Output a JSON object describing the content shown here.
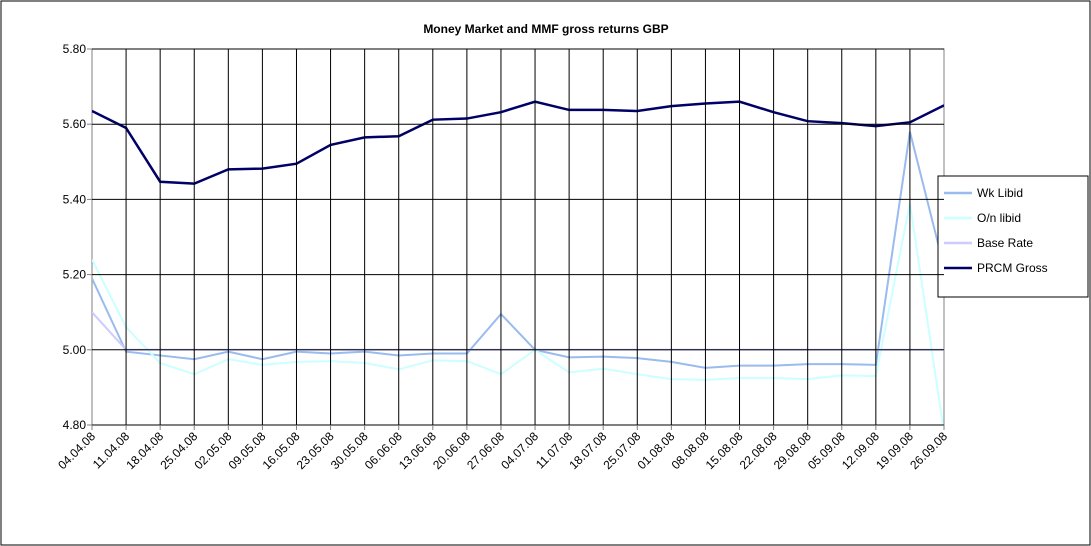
{
  "chart_data": {
    "type": "line",
    "title": "Money Market and MMF gross returns GBP",
    "categories": [
      "04.04.08",
      "11.04.08",
      "18.04.08",
      "25.04.08",
      "02.05.08",
      "09.05.08",
      "16.05.08",
      "23.05.08",
      "30.05.08",
      "06.06.08",
      "13.06.08",
      "20.06.08",
      "27.06.08",
      "04.07.08",
      "11.07.08",
      "18.07.08",
      "25.07.08",
      "01.08.08",
      "08.08.08",
      "15.08.08",
      "22.08.08",
      "29.08.08",
      "05.09.08",
      "12.09.08",
      "19.09.08",
      "26.09.08"
    ],
    "series": [
      {
        "name": "Wk Libid",
        "color": "#99bbee",
        "values": [
          5.19,
          4.995,
          4.985,
          4.975,
          4.995,
          4.975,
          4.995,
          4.99,
          4.995,
          4.985,
          4.99,
          4.99,
          5.095,
          5.0,
          4.98,
          4.982,
          4.978,
          4.968,
          4.952,
          4.958,
          4.958,
          4.962,
          4.962,
          4.96,
          5.58,
          5.22
        ]
      },
      {
        "name": "O/n libid",
        "color": "#ccffff",
        "values": [
          5.24,
          5.06,
          4.965,
          4.935,
          4.975,
          4.96,
          4.968,
          4.97,
          4.965,
          4.948,
          4.972,
          4.97,
          4.935,
          5.0,
          4.94,
          4.95,
          4.935,
          4.922,
          4.92,
          4.925,
          4.925,
          4.922,
          4.932,
          4.93,
          5.39,
          4.78
        ]
      },
      {
        "name": "Base Rate",
        "color": "#ccccff",
        "values": [
          5.1,
          5.0,
          5.0,
          5.0,
          5.0,
          5.0,
          5.0,
          5.0,
          5.0,
          5.0,
          5.0,
          5.0,
          5.0,
          5.0,
          5.0,
          5.0,
          5.0,
          5.0,
          5.0,
          5.0,
          5.0,
          5.0,
          5.0,
          5.0,
          5.0,
          5.0
        ]
      },
      {
        "name": "PRCM Gross",
        "color": "#000066",
        "values": [
          5.635,
          5.59,
          5.447,
          5.442,
          5.48,
          5.482,
          5.495,
          5.545,
          5.565,
          5.568,
          5.612,
          5.615,
          5.632,
          5.66,
          5.638,
          5.638,
          5.635,
          5.648,
          5.655,
          5.66,
          5.632,
          5.608,
          5.603,
          5.595,
          5.605,
          5.65
        ]
      }
    ],
    "ylim": [
      4.8,
      5.8
    ],
    "yticks": [
      {
        "value": 4.8,
        "label": "4.80"
      },
      {
        "value": 5.0,
        "label": "5.00"
      },
      {
        "value": 5.2,
        "label": "5.20"
      },
      {
        "value": 5.4,
        "label": "5.40"
      },
      {
        "value": 5.6,
        "label": "5.60"
      },
      {
        "value": 5.8,
        "label": "5.80"
      }
    ],
    "grid": true,
    "legend": "right"
  }
}
